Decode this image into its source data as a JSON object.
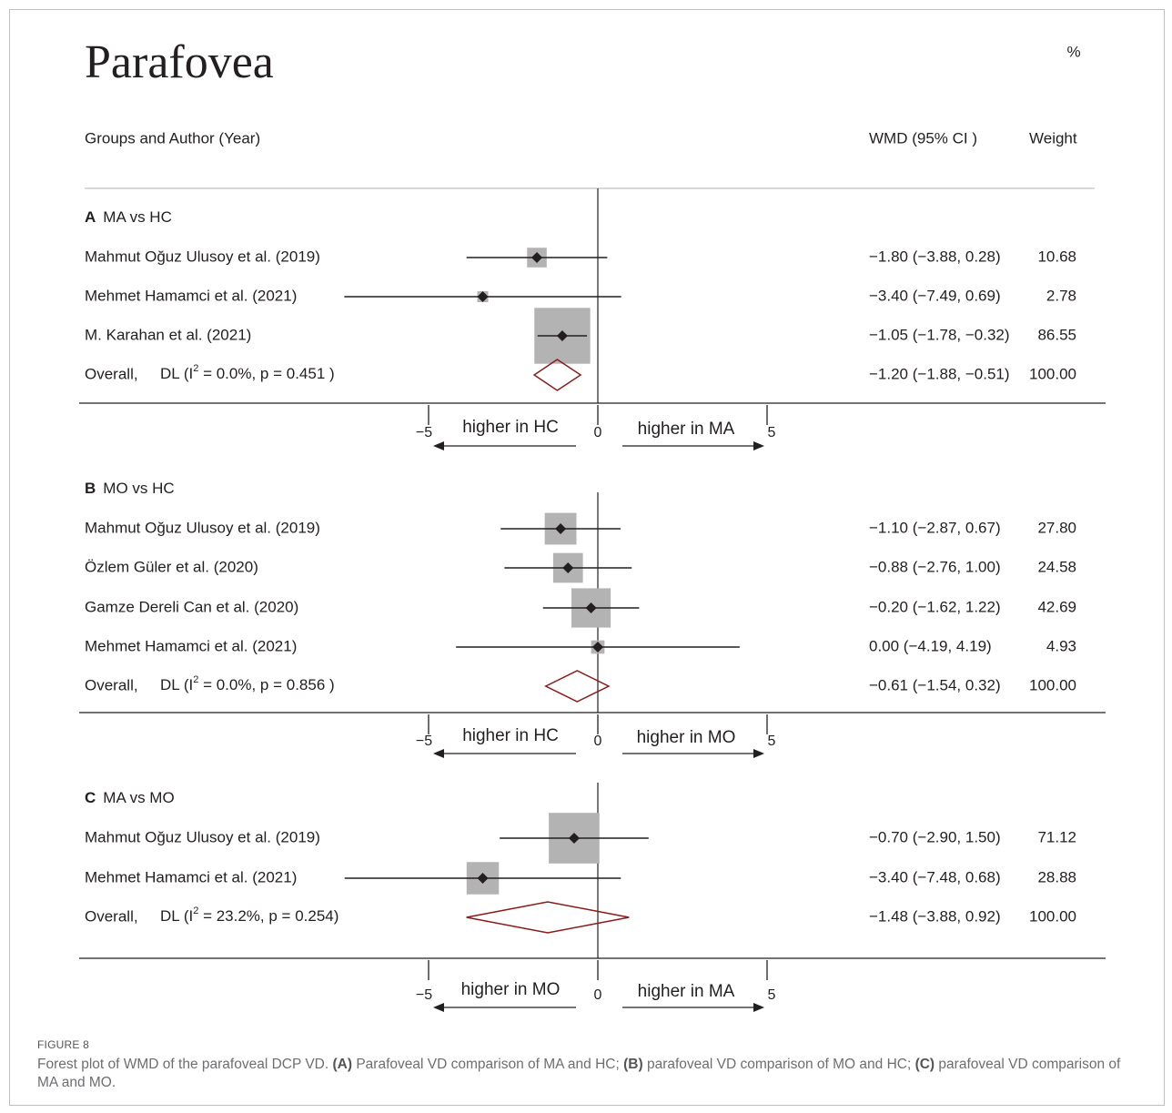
{
  "figure": {
    "title": "Parafovea",
    "pct_label": "%",
    "col_study": "Groups and Author (Year)",
    "col_wmd": "WMD  (95% CI )",
    "col_weight": "Weight",
    "colors": {
      "box": "#b3b3b3",
      "diamond": "#8b1a1a",
      "ink": "#231f20",
      "rule": "#cccccc"
    }
  },
  "chart_data": {
    "type": "forest",
    "title": "Parafovea",
    "xlim": [
      -5,
      5
    ],
    "xticks": [
      -5,
      0,
      5
    ],
    "panels": [
      {
        "letter": "A",
        "label": "MA vs HC",
        "left_note": "higher in HC",
        "right_note": "higher in MA",
        "studies": [
          {
            "name": "Mahmut Oğuz Ulusoy et al. (2019)",
            "est": -1.8,
            "lo": -3.88,
            "hi": 0.28,
            "ci_text": "−1.80 (−3.88, 0.28)",
            "weight": "10.68",
            "w": 10.68
          },
          {
            "name": "Mehmet Hamamci et al. (2021)",
            "est": -3.4,
            "lo": -7.49,
            "hi": 0.69,
            "ci_text": "−3.40 (−7.49, 0.69)",
            "weight": "2.78",
            "w": 2.78
          },
          {
            "name": "M. Karahan et al. (2021)",
            "est": -1.05,
            "lo": -1.78,
            "hi": -0.32,
            "ci_text": "−1.05 (−1.78, −0.32)",
            "weight": "86.55",
            "w": 86.55
          }
        ],
        "overall": {
          "label": "Overall,",
          "het_pre": "DL (I",
          "het_post": " = 0.0%, p = 0.451 )",
          "est": -1.2,
          "lo": -1.88,
          "hi": -0.51,
          "ci_text": "−1.20 (−1.88, −0.51)",
          "weight": "100.00"
        }
      },
      {
        "letter": "B",
        "label": "MO vs HC",
        "left_note": "higher in HC",
        "right_note": "higher in MO",
        "studies": [
          {
            "name": "Mahmut Oğuz Ulusoy et al. (2019)",
            "est": -1.1,
            "lo": -2.87,
            "hi": 0.67,
            "ci_text": "−1.10 (−2.87, 0.67)",
            "weight": "27.80",
            "w": 27.8
          },
          {
            "name": "Özlem Güler et al. (2020)",
            "est": -0.88,
            "lo": -2.76,
            "hi": 1.0,
            "ci_text": "−0.88 (−2.76, 1.00)",
            "weight": "24.58",
            "w": 24.58
          },
          {
            "name": "Gamze Dereli Can et al. (2020)",
            "est": -0.2,
            "lo": -1.62,
            "hi": 1.22,
            "ci_text": "−0.20 (−1.62, 1.22)",
            "weight": "42.69",
            "w": 42.69
          },
          {
            "name": "Mehmet Hamamci et al. (2021)",
            "est": 0.0,
            "lo": -4.19,
            "hi": 4.19,
            "ci_text": "0.00 (−4.19, 4.19)",
            "weight": "4.93",
            "w": 4.93
          }
        ],
        "overall": {
          "label": "Overall,",
          "het_pre": "DL (I",
          "het_post": " = 0.0%, p = 0.856 )",
          "est": -0.61,
          "lo": -1.54,
          "hi": 0.32,
          "ci_text": "−0.61 (−1.54, 0.32)",
          "weight": "100.00"
        }
      },
      {
        "letter": "C",
        "label": "MA vs MO",
        "left_note": "higher in MO",
        "right_note": "higher in MA",
        "studies": [
          {
            "name": "Mahmut Oğuz Ulusoy et al. (2019)",
            "est": -0.7,
            "lo": -2.9,
            "hi": 1.5,
            "ci_text": "−0.70 (−2.90, 1.50)",
            "weight": "71.12",
            "w": 71.12
          },
          {
            "name": "Mehmet Hamamci et al. (2021)",
            "est": -3.4,
            "lo": -7.48,
            "hi": 0.68,
            "ci_text": "−3.40 (−7.48, 0.68)",
            "weight": "28.88",
            "w": 28.88
          }
        ],
        "overall": {
          "label": "Overall,",
          "het_pre": "DL (I",
          "het_post": " = 23.2%, p = 0.254)",
          "est": -1.48,
          "lo": -3.88,
          "hi": 0.92,
          "ci_text": "−1.48 (−3.88, 0.92)",
          "weight": "100.00"
        }
      }
    ]
  },
  "caption": {
    "label": "FIGURE 8",
    "p1": "Forest plot of WMD of the parafoveal DCP VD. ",
    "a": "(A)",
    "p2": " Parafoveal VD comparison of MA and HC; ",
    "b": "(B)",
    "p3": " parafoveal VD comparison of MO and HC; ",
    "c": "(C)",
    "p4": " parafoveal VD comparison of MA and MO."
  }
}
